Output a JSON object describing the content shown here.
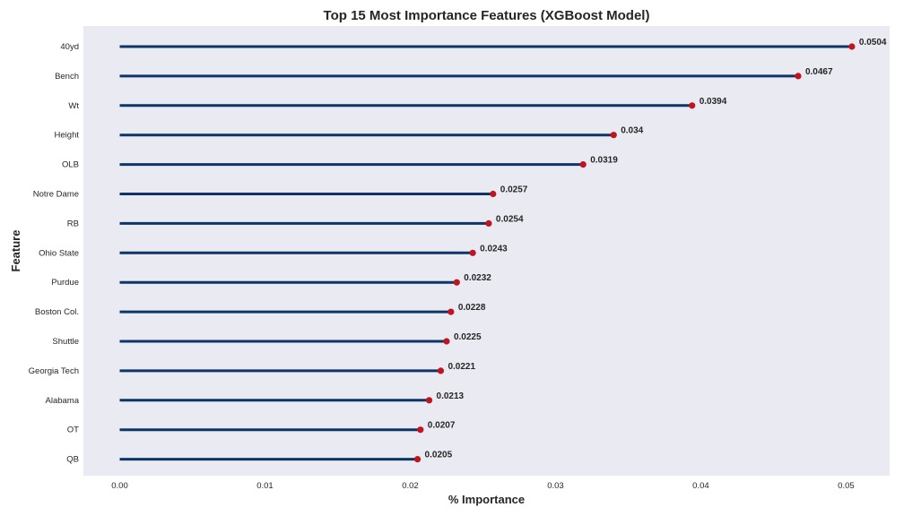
{
  "chart_data": {
    "type": "lollipop",
    "title": "Top 15 Most Importance Features (XGBoost Model)",
    "xlabel": "% Importance",
    "ylabel": "Feature",
    "xlim": [
      -0.0025,
      0.053
    ],
    "xticks": [
      0.0,
      0.01,
      0.02,
      0.03,
      0.04,
      0.05
    ],
    "xtick_labels": [
      "0.00",
      "0.01",
      "0.02",
      "0.03",
      "0.04",
      "0.05"
    ],
    "grid": false,
    "categories": [
      "40yd",
      "Bench",
      "Wt",
      "Height",
      "OLB",
      "Notre Dame",
      "RB",
      "Ohio State",
      "Purdue",
      "Boston Col.",
      "Shuttle",
      "Georgia Tech",
      "Alabama",
      "OT",
      "QB"
    ],
    "values": [
      0.0504,
      0.0467,
      0.0394,
      0.034,
      0.0319,
      0.0257,
      0.0254,
      0.0243,
      0.0232,
      0.0228,
      0.0225,
      0.0221,
      0.0213,
      0.0207,
      0.0205
    ],
    "value_labels": [
      "0.0504",
      "0.0467",
      "0.0394",
      "0.034",
      "0.0319",
      "0.0257",
      "0.0254",
      "0.0243",
      "0.0232",
      "0.0228",
      "0.0225",
      "0.0221",
      "0.0213",
      "0.0207",
      "0.0205"
    ],
    "colors": {
      "background": "#eaeaf2",
      "stem": "#0d3566",
      "marker": "#c0141f"
    }
  }
}
